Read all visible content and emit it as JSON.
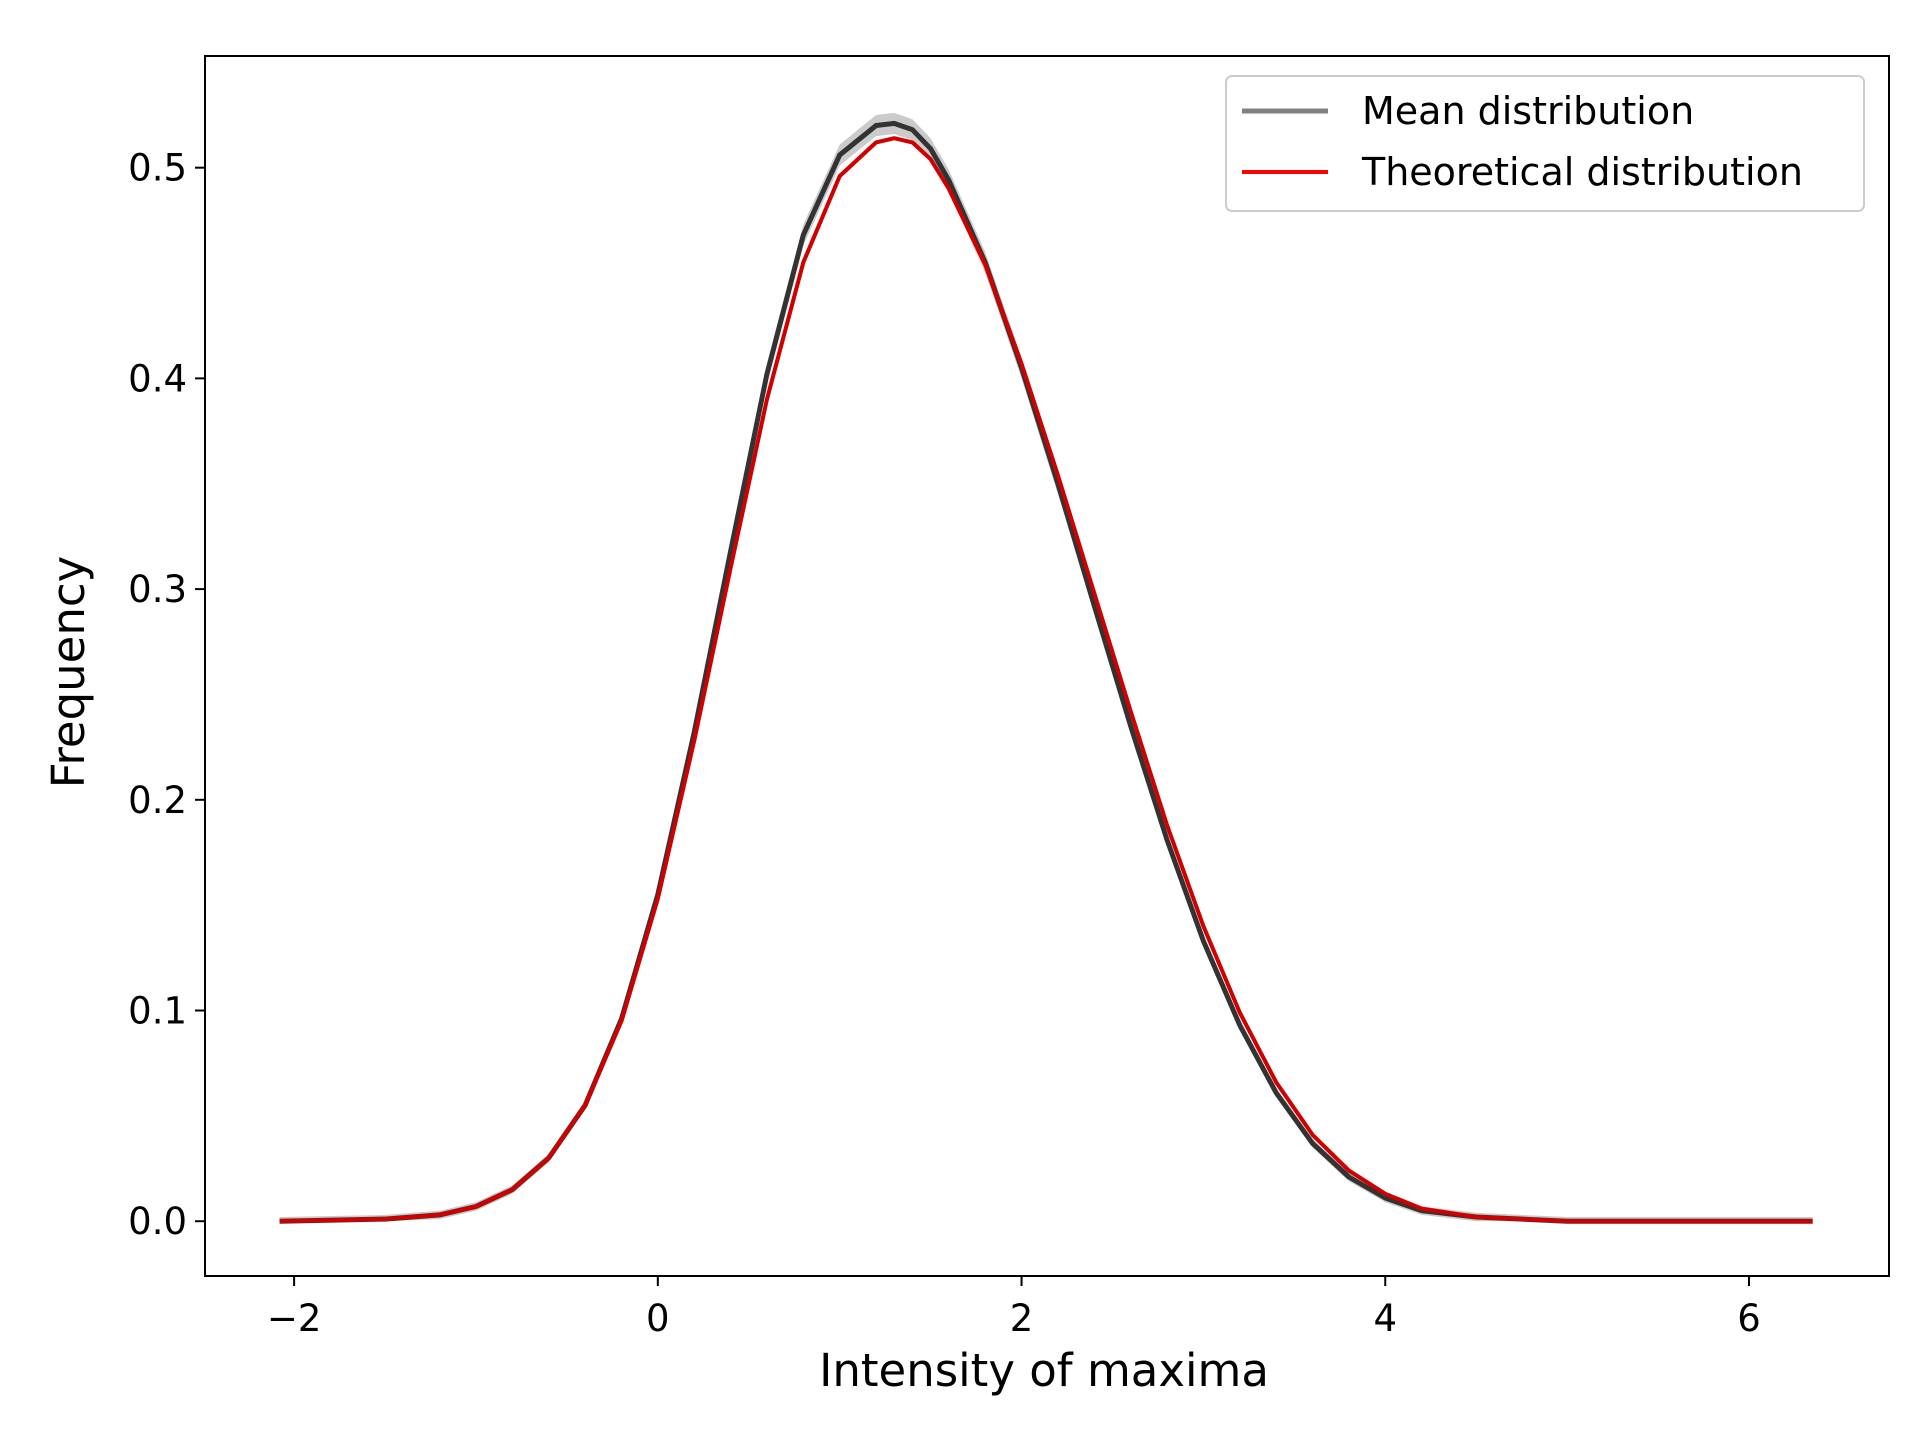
{
  "chart_data": {
    "type": "line",
    "title": "",
    "xlabel": "Intensity of maxima",
    "ylabel": "Frequency",
    "xlim": [
      -2.49,
      6.77
    ],
    "ylim": [
      -0.026,
      0.553
    ],
    "xticks": [
      -2,
      0,
      2,
      4,
      6
    ],
    "xtick_labels": [
      "−2",
      "0",
      "2",
      "4",
      "6"
    ],
    "yticks": [
      0.0,
      0.1,
      0.2,
      0.3,
      0.4,
      0.5
    ],
    "ytick_labels": [
      "0.0",
      "0.1",
      "0.2",
      "0.3",
      "0.4",
      "0.5"
    ],
    "grid": false,
    "legend_position": "top-right",
    "series": [
      {
        "name": "Mean distribution",
        "color": "#808080",
        "band_color": "#a0a0a0",
        "line_color": "#333333",
        "x": [
          -2.08,
          -1.5,
          -1.2,
          -1.0,
          -0.8,
          -0.6,
          -0.4,
          -0.2,
          0.0,
          0.2,
          0.4,
          0.6,
          0.8,
          1.0,
          1.2,
          1.3,
          1.4,
          1.5,
          1.6,
          1.8,
          2.0,
          2.2,
          2.4,
          2.6,
          2.8,
          3.0,
          3.2,
          3.4,
          3.6,
          3.8,
          4.0,
          4.2,
          4.5,
          5.0,
          6.35
        ],
        "y": [
          0.0,
          0.001,
          0.003,
          0.007,
          0.015,
          0.03,
          0.055,
          0.096,
          0.155,
          0.232,
          0.318,
          0.402,
          0.468,
          0.506,
          0.52,
          0.521,
          0.518,
          0.509,
          0.494,
          0.455,
          0.405,
          0.35,
          0.292,
          0.235,
          0.181,
          0.133,
          0.093,
          0.061,
          0.037,
          0.021,
          0.011,
          0.005,
          0.002,
          0.0,
          0.0
        ],
        "band": 0.005
      },
      {
        "name": "Theoretical distribution",
        "color": "#ff0000",
        "x": [
          -2.08,
          -1.5,
          -1.2,
          -1.0,
          -0.8,
          -0.6,
          -0.4,
          -0.2,
          0.0,
          0.2,
          0.4,
          0.6,
          0.8,
          1.0,
          1.2,
          1.3,
          1.4,
          1.5,
          1.6,
          1.8,
          2.0,
          2.2,
          2.4,
          2.6,
          2.8,
          3.0,
          3.2,
          3.4,
          3.6,
          3.8,
          4.0,
          4.2,
          4.5,
          5.0,
          6.35
        ],
        "y": [
          0.0,
          0.001,
          0.003,
          0.007,
          0.015,
          0.03,
          0.055,
          0.095,
          0.153,
          0.228,
          0.31,
          0.39,
          0.455,
          0.496,
          0.512,
          0.514,
          0.512,
          0.504,
          0.49,
          0.454,
          0.407,
          0.354,
          0.298,
          0.242,
          0.188,
          0.14,
          0.099,
          0.066,
          0.041,
          0.024,
          0.013,
          0.006,
          0.002,
          0.0,
          0.0
        ]
      }
    ],
    "colors": {
      "axes": "#000000",
      "background": "#ffffff",
      "overlap": "#7a0000"
    }
  }
}
